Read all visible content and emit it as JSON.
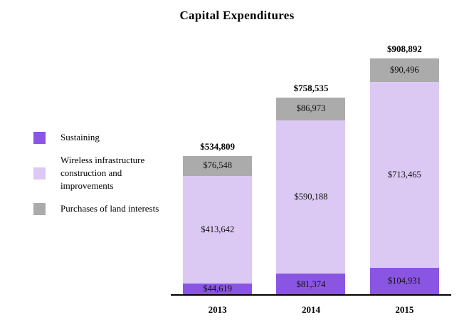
{
  "title": "Capital Expenditures",
  "chart_data": {
    "type": "bar",
    "stacked": true,
    "title": "Capital Expenditures",
    "xlabel": "",
    "ylabel": "",
    "categories": [
      "2013",
      "2014",
      "2015"
    ],
    "series": [
      {
        "key": "sustaining",
        "name": "Sustaining",
        "color": "#8a55e2",
        "values": [
          44619,
          81374,
          104931
        ],
        "labels": [
          "$44,619",
          "$81,374",
          "$104,931"
        ]
      },
      {
        "key": "wireless-infrastructure",
        "name": "Wireless infrastructure construction and improvements",
        "color": "#dbc9f3",
        "values": [
          413642,
          590188,
          713465
        ],
        "labels": [
          "$413,642",
          "$590,188",
          "$713,465"
        ]
      },
      {
        "key": "land-interests",
        "name": "Purchases of land interests",
        "color": "#ababab",
        "values": [
          76548,
          86973,
          90496
        ],
        "labels": [
          "$76,548",
          "$86,973",
          "$90,496"
        ]
      }
    ],
    "totals": [
      534809,
      758535,
      908892
    ],
    "total_labels": [
      "$534,809",
      "$758,535",
      "$908,892"
    ],
    "ylim": [
      0,
      908892
    ],
    "grid": false,
    "legend_position": "left",
    "axis_color": "#000000",
    "background_color": "#ffffff"
  }
}
